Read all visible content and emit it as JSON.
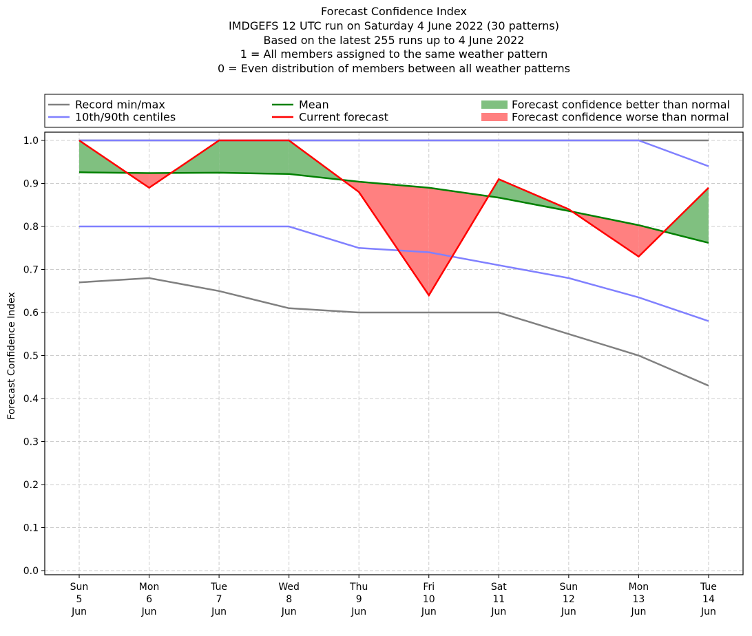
{
  "chart_data": {
    "type": "line",
    "title_lines": [
      "Forecast Confidence Index",
      "IMDGEFS 12 UTC run on Saturday 4 June 2022 (30 patterns)",
      "Based on the latest 255 runs up to 4 June 2022",
      "1 = All members assigned to the same weather pattern",
      "0 = Even distribution of members between all weather patterns"
    ],
    "ylabel": "Forecast Confidence Index",
    "xlabel": "",
    "ylim": [
      0,
      1
    ],
    "yticks": [
      "0.0",
      "0.1",
      "0.2",
      "0.3",
      "0.4",
      "0.5",
      "0.6",
      "0.7",
      "0.8",
      "0.9",
      "1.0"
    ],
    "categories": [
      [
        "Sun",
        "5",
        "Jun"
      ],
      [
        "Mon",
        "6",
        "Jun"
      ],
      [
        "Tue",
        "7",
        "Jun"
      ],
      [
        "Wed",
        "8",
        "Jun"
      ],
      [
        "Thu",
        "9",
        "Jun"
      ],
      [
        "Fri",
        "10",
        "Jun"
      ],
      [
        "Sat",
        "11",
        "Jun"
      ],
      [
        "Sun",
        "12",
        "Jun"
      ],
      [
        "Mon",
        "13",
        "Jun"
      ],
      [
        "Tue",
        "14",
        "Jun"
      ]
    ],
    "grid": true,
    "legend_placement": "top",
    "series": {
      "record_min": [
        0.67,
        0.68,
        0.65,
        0.61,
        0.6,
        0.6,
        0.6,
        0.55,
        0.5,
        0.43
      ],
      "record_max": [
        1.0,
        1.0,
        1.0,
        1.0,
        1.0,
        1.0,
        1.0,
        1.0,
        1.0,
        1.0
      ],
      "centile_10": [
        0.8,
        0.8,
        0.8,
        0.8,
        0.75,
        0.74,
        0.71,
        0.68,
        0.635,
        0.58
      ],
      "centile_90": [
        1.0,
        1.0,
        1.0,
        1.0,
        1.0,
        1.0,
        1.0,
        1.0,
        1.0,
        0.94
      ],
      "mean": [
        0.926,
        0.924,
        0.925,
        0.922,
        0.904,
        0.89,
        0.867,
        0.836,
        0.803,
        0.762
      ],
      "current_forecast": [
        1.0,
        0.89,
        1.0,
        1.0,
        0.88,
        0.64,
        0.91,
        0.84,
        0.73,
        0.89
      ]
    },
    "legend": [
      {
        "label": "Record min/max",
        "kind": "line",
        "color": "#808080"
      },
      {
        "label": "10th/90th centiles",
        "kind": "line",
        "color": "#8080ff"
      },
      {
        "label": "Mean",
        "kind": "line",
        "color": "#008000"
      },
      {
        "label": "Current forecast",
        "kind": "line",
        "color": "#ff0000"
      },
      {
        "label": "Forecast confidence better than normal",
        "kind": "fill",
        "color": "#80c080"
      },
      {
        "label": "Forecast confidence worse than normal",
        "kind": "fill",
        "color": "#ff8080"
      }
    ],
    "colors": {
      "record": "#808080",
      "centile": "#8080ff",
      "mean": "#008000",
      "current": "#ff0000",
      "better_fill": "#80c080",
      "worse_fill": "#ff8080",
      "grid": "#cccccc"
    }
  }
}
